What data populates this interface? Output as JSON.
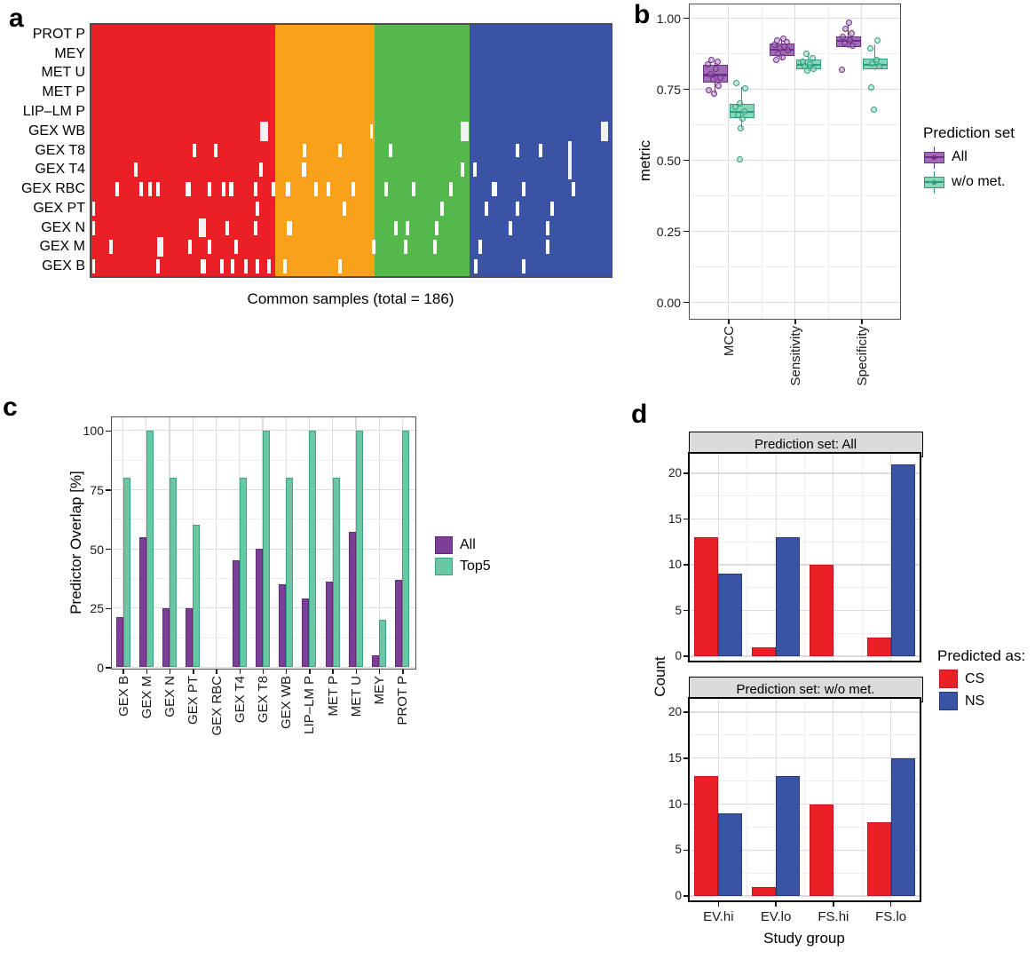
{
  "figure": {
    "letters": {
      "a": "a",
      "b": "b",
      "c": "c",
      "d": "d"
    }
  },
  "colors": {
    "red": "#EB2027",
    "red_dark": "#C0161D",
    "orange": "#F9A11B",
    "green": "#55B84A",
    "blue": "#3A53A5",
    "blue_dark": "#273879",
    "purple": "#7C3E97",
    "purple_dark": "#5E2B77",
    "teal": "#6AC7A3",
    "teal_dark": "#3FA184",
    "box_purple_fill": "#A06CB5",
    "box_purple_border": "#6E2D88",
    "box_purple_point": "rgba(160,108,181,0.45)",
    "box_teal_fill": "#87D7B7",
    "box_teal_border": "#2E9C82",
    "box_teal_point": "rgba(135,215,183,0.5)",
    "grid_major": "#DCDCDC",
    "grid_minor": "#EEEEEE",
    "strip_bg": "#DBDBDB",
    "panel_border": "#4D4D4D",
    "gap_fill": "#FFFFFF",
    "gap_fill_wide": "#F2F2F2",
    "tick": "#1a1a1a"
  },
  "chart_data": [
    {
      "id": "a",
      "type": "heatmap",
      "xlabel": "Common samples (total = 186)",
      "rows": [
        "PROT P",
        "MEY",
        "MET U",
        "MET P",
        "LIP–LM P",
        "GEX WB",
        "GEX T8",
        "GEX T4",
        "GEX RBC",
        "GEX PT",
        "GEX N",
        "GEX M",
        "GEX B"
      ],
      "groups": [
        {
          "color": "red",
          "fraction": 0.353
        },
        {
          "color": "orange",
          "fraction": 0.193
        },
        {
          "color": "green",
          "fraction": 0.182
        },
        {
          "color": "blue",
          "fraction": 0.272
        }
      ],
      "missing": {
        "GEX WB": [
          [
            33.2,
            9,
            1
          ],
          [
            54,
            3,
            0
          ],
          [
            71.8,
            9,
            1
          ],
          [
            98.8,
            8,
            1
          ]
        ],
        "GEX T8": [
          [
            19.8,
            4,
            0
          ],
          [
            24,
            4,
            0
          ],
          [
            41,
            4,
            0
          ],
          [
            47.9,
            4,
            0
          ],
          [
            57.6,
            4,
            0
          ],
          [
            82.1,
            4,
            0
          ],
          [
            86.5,
            4,
            0
          ],
          [
            92.2,
            4,
            1
          ]
        ],
        "GEX T4": [
          [
            8.6,
            4,
            0
          ],
          [
            32.7,
            4,
            0
          ],
          [
            40.9,
            5,
            0
          ],
          [
            71.5,
            4,
            0
          ],
          [
            73.8,
            4,
            0
          ],
          [
            92.2,
            4,
            1
          ]
        ],
        "GEX RBC": [
          [
            4.9,
            4,
            0
          ],
          [
            9.5,
            4,
            0
          ],
          [
            11.2,
            4,
            0
          ],
          [
            12.9,
            4,
            0
          ],
          [
            18.6,
            6,
            0
          ],
          [
            22.8,
            4,
            0
          ],
          [
            25.5,
            4,
            0
          ],
          [
            27,
            5,
            0
          ],
          [
            31.6,
            4,
            0
          ],
          [
            35,
            4,
            0
          ],
          [
            37.8,
            5,
            0
          ],
          [
            43.3,
            4,
            0
          ],
          [
            45.6,
            4,
            0
          ],
          [
            50.5,
            4,
            0
          ],
          [
            56.8,
            4,
            0
          ],
          [
            62,
            4,
            0
          ],
          [
            69.2,
            4,
            0
          ],
          [
            77.6,
            6,
            0
          ],
          [
            83.3,
            4,
            0
          ],
          [
            92.8,
            4,
            0
          ]
        ],
        "GEX PT": [
          [
            0.4,
            3,
            0
          ],
          [
            31.9,
            4,
            0
          ],
          [
            48.7,
            4,
            0
          ],
          [
            67.6,
            4,
            0
          ],
          [
            76,
            4,
            0
          ],
          [
            82,
            4,
            0
          ],
          [
            88.8,
            4,
            0
          ]
        ],
        "GEX N": [
          [
            0.4,
            3,
            0
          ],
          [
            21.4,
            8,
            1
          ],
          [
            26.2,
            4,
            0
          ],
          [
            31.6,
            4,
            0
          ],
          [
            38.2,
            6,
            0
          ],
          [
            58.6,
            4,
            0
          ],
          [
            60.8,
            4,
            0
          ],
          [
            66.5,
            4,
            0
          ],
          [
            80.6,
            4,
            0
          ],
          [
            87.8,
            4,
            0
          ]
        ],
        "GEX M": [
          [
            3.8,
            4,
            0
          ],
          [
            13.2,
            7,
            1
          ],
          [
            19,
            4,
            0
          ],
          [
            22.8,
            4,
            0
          ],
          [
            27.8,
            4,
            0
          ],
          [
            54.4,
            4,
            0
          ],
          [
            60.5,
            4,
            0
          ],
          [
            66.2,
            4,
            0
          ],
          [
            74.9,
            4,
            0
          ],
          [
            87.8,
            4,
            0
          ]
        ],
        "GEX B": [
          [
            0.4,
            3,
            0
          ],
          [
            12.9,
            4,
            0
          ],
          [
            21.6,
            6,
            0
          ],
          [
            25.1,
            4,
            0
          ],
          [
            27.2,
            4,
            0
          ],
          [
            29.7,
            4,
            0
          ],
          [
            31.9,
            4,
            0
          ],
          [
            34.2,
            4,
            0
          ],
          [
            37.3,
            4,
            0
          ],
          [
            47.9,
            4,
            0
          ],
          [
            74.1,
            4,
            0
          ],
          [
            83.3,
            4,
            0
          ]
        ]
      }
    },
    {
      "id": "b",
      "type": "box",
      "ylabel": "metric",
      "ylim": [
        0,
        1
      ],
      "yticks": [
        {
          "v": 0,
          "label": "0.00"
        },
        {
          "v": 0.25,
          "label": "0.25"
        },
        {
          "v": 0.5,
          "label": "0.50"
        },
        {
          "v": 0.75,
          "label": "0.75"
        },
        {
          "v": 1,
          "label": "1.00"
        }
      ],
      "categories": [
        "MCC",
        "Sensitivity",
        "Specificity"
      ],
      "legend": {
        "title": "Prediction set",
        "entries": [
          {
            "label": "All",
            "color": "purple"
          },
          {
            "label": "w/o met.",
            "color": "teal"
          }
        ]
      },
      "series": [
        {
          "name": "All",
          "color": "purple",
          "boxes": [
            {
              "lo": 0.736,
              "q1": 0.773,
              "med": 0.799,
              "q3": 0.836,
              "hi": 0.846,
              "points": [
                [
                  0.852,
                  -4
                ],
                [
                  0.845,
                  3
                ],
                [
                  0.838,
                  -8
                ],
                [
                  0.82,
                  1
                ],
                [
                  0.801,
                  -5
                ],
                [
                  0.791,
                  6
                ],
                [
                  0.785,
                  -2
                ],
                [
                  0.761,
                  4
                ],
                [
                  0.746,
                  -7
                ],
                [
                  0.733,
                  -1
                ]
              ]
            },
            {
              "lo": 0.852,
              "q1": 0.867,
              "med": 0.888,
              "q3": 0.911,
              "hi": 0.926,
              "points": [
                [
                  0.928,
                  2
                ],
                [
                  0.921,
                  -5
                ],
                [
                  0.916,
                  6
                ],
                [
                  0.906,
                  -8
                ],
                [
                  0.899,
                  3
                ],
                [
                  0.893,
                  -2
                ],
                [
                  0.886,
                  7
                ],
                [
                  0.873,
                  -4
                ],
                [
                  0.862,
                  1
                ],
                [
                  0.853,
                  -6
                ]
              ]
            },
            {
              "lo": 0.896,
              "q1": 0.898,
              "med": 0.919,
              "q3": 0.934,
              "hi": 0.976,
              "points": [
                [
                  0.985,
                  1
                ],
                [
                  0.962,
                  -3
                ],
                [
                  0.947,
                  4
                ],
                [
                  0.933,
                  -6
                ],
                [
                  0.921,
                  2
                ],
                [
                  0.912,
                  -4
                ],
                [
                  0.902,
                  5
                ],
                [
                  0.817,
                  -7
                ]
              ]
            }
          ]
        },
        {
          "name": "w/o met.",
          "color": "teal",
          "boxes": [
            {
              "lo": 0.609,
              "q1": 0.646,
              "med": 0.669,
              "q3": 0.698,
              "hi": 0.758,
              "points": [
                [
                  0.77,
                  -6
                ],
                [
                  0.753,
                  4
                ],
                [
                  0.7,
                  -2
                ],
                [
                  0.686,
                  -7
                ],
                [
                  0.672,
                  3
                ],
                [
                  0.66,
                  -4
                ],
                [
                  0.646,
                  1
                ],
                [
                  0.611,
                  -1
                ],
                [
                  0.503,
                  -2
                ]
              ]
            },
            {
              "lo": 0.813,
              "q1": 0.818,
              "med": 0.835,
              "q3": 0.854,
              "hi": 0.877,
              "points": [
                [
                  0.875,
                  -2
                ],
                [
                  0.858,
                  5
                ],
                [
                  0.846,
                  -6
                ],
                [
                  0.838,
                  2
                ],
                [
                  0.829,
                  -4
                ],
                [
                  0.821,
                  6
                ],
                [
                  0.814,
                  -1
                ]
              ]
            },
            {
              "lo": 0.818,
              "q1": 0.82,
              "med": 0.836,
              "q3": 0.856,
              "hi": 0.908,
              "points": [
                [
                  0.92,
                  3
                ],
                [
                  0.894,
                  -5
                ],
                [
                  0.851,
                  2
                ],
                [
                  0.84,
                  -3
                ],
                [
                  0.831,
                  5
                ],
                [
                  0.756,
                  -4
                ],
                [
                  0.677,
                  -1
                ]
              ]
            }
          ]
        }
      ]
    },
    {
      "id": "c",
      "type": "bar",
      "ylabel": "Predictor Overlap [%]",
      "ylim": [
        0,
        100
      ],
      "yticks": [
        0,
        25,
        50,
        75,
        100
      ],
      "categories": [
        "GEX B",
        "GEX M",
        "GEX N",
        "GEX PT",
        "GEX RBC",
        "GEX T4",
        "GEX T8",
        "GEX WB",
        "LIP–LM P",
        "MET P",
        "MET U",
        "MEY",
        "PROT P"
      ],
      "series": [
        {
          "name": "All",
          "color": "purple",
          "values": [
            21,
            55,
            25,
            25,
            0,
            45,
            50,
            35,
            29,
            36,
            57,
            5,
            37
          ]
        },
        {
          "name": "Top5",
          "color": "teal",
          "values": [
            80,
            100,
            80,
            60,
            0,
            80,
            100,
            80,
            100,
            80,
            100,
            20,
            100
          ]
        }
      ],
      "legend": {
        "entries": [
          {
            "label": "All",
            "color": "purple"
          },
          {
            "label": "Top5",
            "color": "teal"
          }
        ]
      }
    },
    {
      "id": "d",
      "type": "bar",
      "faceted": true,
      "ylabel": "Count",
      "xlabel": "Study group",
      "ylim": [
        0,
        22
      ],
      "yticks": [
        0,
        5,
        10,
        15,
        20
      ],
      "categories": [
        "EV.hi",
        "EV.lo",
        "FS.hi",
        "FS.lo"
      ],
      "facets": [
        {
          "label": "Prediction set: All",
          "series": [
            {
              "name": "CS",
              "color": "red",
              "values": [
                13,
                1,
                10,
                2
              ]
            },
            {
              "name": "NS",
              "color": "blue",
              "values": [
                9,
                13,
                0,
                21
              ]
            }
          ]
        },
        {
          "label": "Prediction set: w/o met.",
          "series": [
            {
              "name": "CS",
              "color": "red",
              "values": [
                13,
                1,
                10,
                8
              ]
            },
            {
              "name": "NS",
              "color": "blue",
              "values": [
                9,
                13,
                0,
                15
              ]
            }
          ]
        }
      ],
      "legend": {
        "title": "Predicted as:",
        "entries": [
          {
            "label": "CS",
            "color": "red"
          },
          {
            "label": "NS",
            "color": "blue"
          }
        ]
      }
    }
  ]
}
